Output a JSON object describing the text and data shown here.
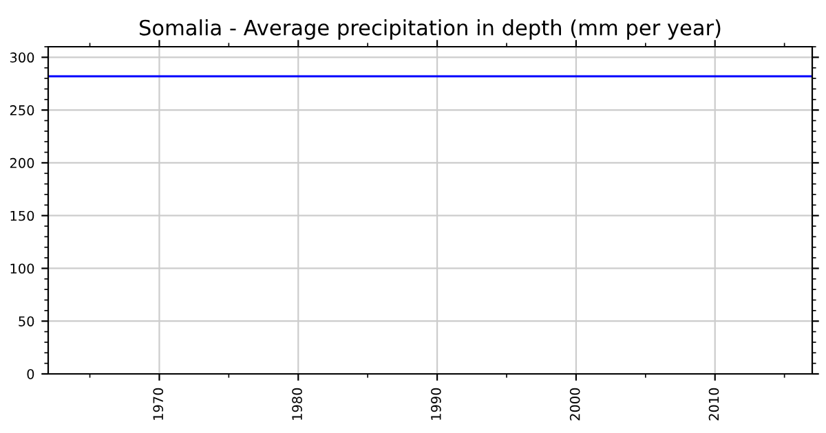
{
  "chart_data": {
    "type": "line",
    "title": "Somalia - Average precipitation in depth (mm per year)",
    "x": [
      1962,
      2017
    ],
    "series": [
      {
        "color": "#0000ff",
        "values": [
          282,
          282
        ]
      }
    ],
    "xlim": [
      1962,
      2017
    ],
    "xticks": [
      1970,
      1980,
      1990,
      2000,
      2010
    ],
    "ylim": [
      0,
      310
    ],
    "yticks": [
      0,
      50,
      100,
      150,
      200,
      250,
      300
    ],
    "grid": true,
    "marker": "none",
    "line_style": "solid"
  }
}
